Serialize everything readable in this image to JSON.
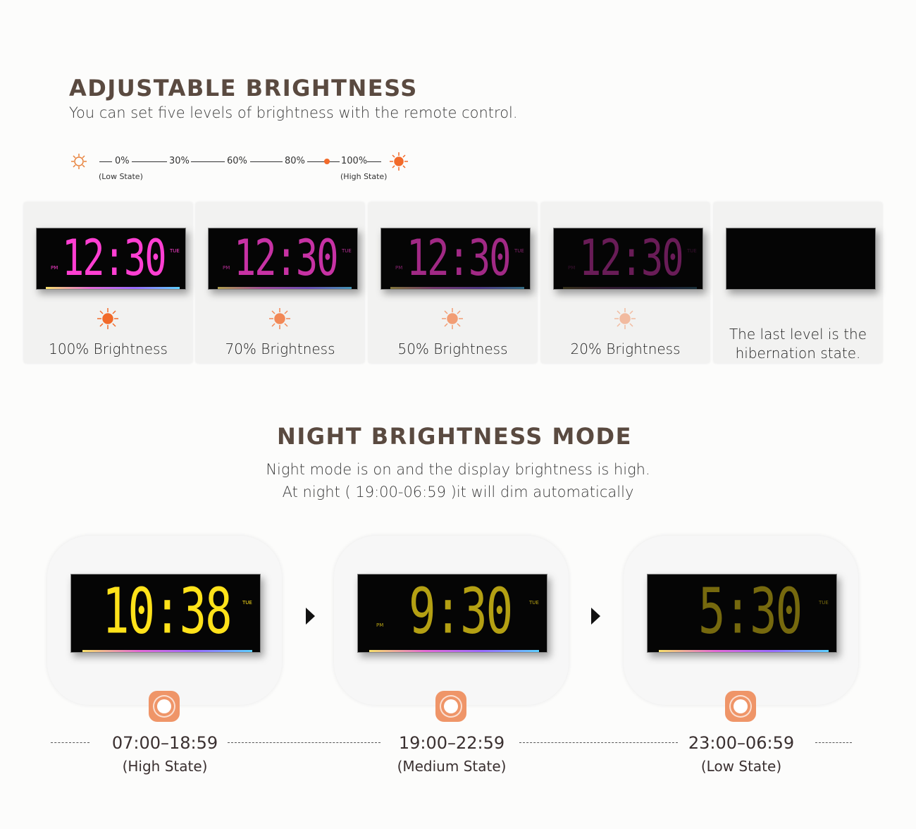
{
  "brightness_section": {
    "title": "ADJUSTABLE BRIGHTNESS",
    "subtitle": "You can set five levels of brightness with the remote control.",
    "scale": {
      "levels": [
        "0%",
        "30%",
        "60%",
        "80%",
        "100%"
      ],
      "low_label": "(Low State)",
      "high_label": "(High State)",
      "selected": "100%",
      "accent": "#f26a2a"
    },
    "clock_time": "12:30",
    "clock_ampm": "PM",
    "clock_day": "TUE",
    "digit_color": "#ff3fd2",
    "cards": [
      {
        "label": "100% Brightness",
        "level": 1.0
      },
      {
        "label": "70% Brightness",
        "level": 0.7
      },
      {
        "label": "50% Brightness",
        "level": 0.5
      },
      {
        "label": "20% Brightness",
        "level": 0.2
      },
      {
        "label": "The last level is the hibernation state.",
        "level": 0
      }
    ]
  },
  "night_section": {
    "title": "NIGHT BRIGHTNESS MODE",
    "line1": "Night mode is on and the display brightness is high.",
    "line2": "At night ( 19:00-06:59 )it will dim automatically",
    "digit_color": "#ffe21a",
    "day": "TUE",
    "ampm": "PM",
    "states": [
      {
        "clock": "10:38",
        "time": "07:00–18:59",
        "state": "(High State)",
        "level": 1.0
      },
      {
        "clock": "9:30",
        "time": "19:00–22:59",
        "state": "(Medium State)",
        "level": 0.7
      },
      {
        "clock": "5:30",
        "time": "23:00–06:59",
        "state": "(Low State)",
        "level": 0.45
      }
    ]
  }
}
